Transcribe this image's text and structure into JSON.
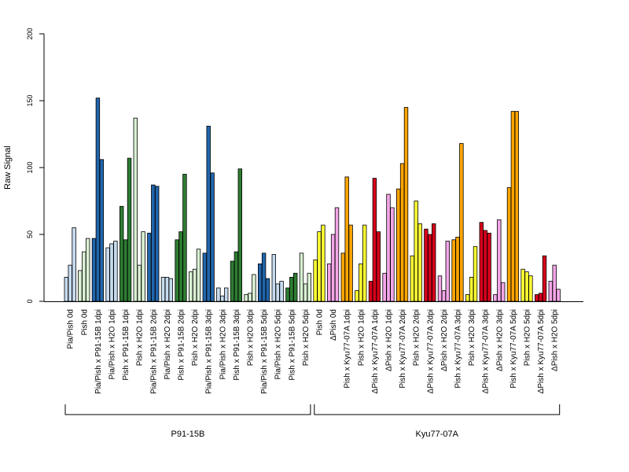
{
  "chart_data": {
    "type": "bar",
    "ylabel": "Raw Signal",
    "xlabel": "",
    "ylim": [
      0,
      200
    ],
    "yticks": [
      0,
      50,
      100,
      150,
      200
    ],
    "grid": false,
    "legend": "none",
    "colors": {
      "light_blue": "#c6dbef",
      "dark_blue": "#2166ac",
      "light_green": "#d9f0d3",
      "dark_green": "#2e7d32",
      "yellow": "#ffff33",
      "pink": "#f4a6e8",
      "orange": "#ffa500",
      "red": "#d7001b"
    },
    "categories": [
      {
        "label": "Pia/Pish 0d",
        "color": "light_blue",
        "values": [
          18,
          27,
          55
        ]
      },
      {
        "label": "Pish 0d",
        "color": "light_green",
        "values": [
          23,
          37,
          47
        ]
      },
      {
        "label": "Pia/Pish x P91-15B 1dpi",
        "color": "dark_blue",
        "values": [
          47,
          152,
          106
        ]
      },
      {
        "label": "Pia/Pish x H2O 1dpi",
        "color": "light_blue",
        "values": [
          40,
          43,
          45
        ]
      },
      {
        "label": "Pish x P91-15B 1dpi",
        "color": "dark_green",
        "values": [
          71,
          46,
          107
        ]
      },
      {
        "label": "Pish x H2O 1dpi",
        "color": "light_green",
        "values": [
          137,
          27,
          52
        ]
      },
      {
        "label": "Pia/Pish x P91-15B 2dpi",
        "color": "dark_blue",
        "values": [
          51,
          87,
          86
        ]
      },
      {
        "label": "Pia/Pish x H2O 2dpi",
        "color": "light_blue",
        "values": [
          18,
          18,
          17
        ]
      },
      {
        "label": "Pish x P91-15B 2dpi",
        "color": "dark_green",
        "values": [
          46,
          52,
          95
        ]
      },
      {
        "label": "Pish x H2O 2dpi",
        "color": "light_green",
        "values": [
          22,
          24,
          39
        ]
      },
      {
        "label": "Pia/Pish x P91-15B 3dpi",
        "color": "dark_blue",
        "values": [
          36,
          131,
          96
        ]
      },
      {
        "label": "Pia/Pish x H2O 3dpi",
        "color": "light_blue",
        "values": [
          10,
          4,
          10
        ]
      },
      {
        "label": "Pish x P91-15B 3dpi",
        "color": "dark_green",
        "values": [
          30,
          37,
          99
        ]
      },
      {
        "label": "Pish x H2O 3dpi",
        "color": "light_green",
        "values": [
          5,
          6,
          20
        ]
      },
      {
        "label": "Pia/Pish x P91-15B 5dpi",
        "color": "dark_blue",
        "values": [
          28,
          36,
          17
        ]
      },
      {
        "label": "Pia/Pish x H2O 5dpi",
        "color": "light_blue",
        "values": [
          35,
          13,
          15
        ]
      },
      {
        "label": "Pish x P91-15B 5dpi",
        "color": "dark_green",
        "values": [
          10,
          18,
          21
        ]
      },
      {
        "label": "Pish x H2O 5dpi",
        "color": "light_green",
        "values": [
          36,
          13,
          21
        ]
      },
      {
        "label": "Pish 0d",
        "color": "yellow",
        "values": [
          31,
          52,
          57
        ]
      },
      {
        "label": "ΔPish 0d",
        "color": "pink",
        "values": [
          28,
          50,
          70
        ]
      },
      {
        "label": "Pish x Kyu77-07A 1dpi",
        "color": "orange",
        "values": [
          36,
          93,
          57
        ]
      },
      {
        "label": "Pish x H2O 1dpi",
        "color": "yellow",
        "values": [
          8,
          28,
          57
        ]
      },
      {
        "label": "ΔPish x Kyu77-07A 1dpi",
        "color": "red",
        "values": [
          15,
          92,
          52
        ]
      },
      {
        "label": "ΔPish x H2O 1dpi",
        "color": "pink",
        "values": [
          21,
          80,
          70
        ]
      },
      {
        "label": "Pish x Kyu77-07A 2dpi",
        "color": "orange",
        "values": [
          84,
          103,
          145
        ]
      },
      {
        "label": "Pish x H2O 2dpi",
        "color": "yellow",
        "values": [
          34,
          75,
          58
        ]
      },
      {
        "label": "ΔPish x Kyu77-07A 2dpi",
        "color": "red",
        "values": [
          54,
          50,
          58
        ]
      },
      {
        "label": "ΔPish x H2O 2dpi",
        "color": "pink",
        "values": [
          19,
          8,
          45
        ]
      },
      {
        "label": "Pish x Kyu77-07A 3dpi",
        "color": "orange",
        "values": [
          46,
          48,
          118
        ]
      },
      {
        "label": "Pish x H2O 3dpi",
        "color": "yellow",
        "values": [
          5,
          18,
          41
        ]
      },
      {
        "label": "ΔPish x Kyu77-07A 3dpi",
        "color": "red",
        "values": [
          59,
          53,
          51
        ]
      },
      {
        "label": "ΔPish x H2O 3dpi",
        "color": "pink",
        "values": [
          5,
          61,
          14
        ]
      },
      {
        "label": "Pish x Kyu77-07A 5dpi",
        "color": "orange",
        "values": [
          85,
          142,
          142
        ]
      },
      {
        "label": "Pish x H2O 5dpi",
        "color": "yellow",
        "values": [
          24,
          22,
          19
        ]
      },
      {
        "label": "ΔPish x Kyu77-07A 5dpi",
        "color": "red",
        "values": [
          5,
          6,
          34
        ]
      },
      {
        "label": "ΔPish x H2O 5dpi",
        "color": "pink",
        "values": [
          15,
          27,
          9
        ]
      }
    ],
    "groups": [
      {
        "label": "P91-15B",
        "first": 0,
        "last": 17
      },
      {
        "label": "Kyu77-07A",
        "first": 18,
        "last": 35
      }
    ]
  }
}
